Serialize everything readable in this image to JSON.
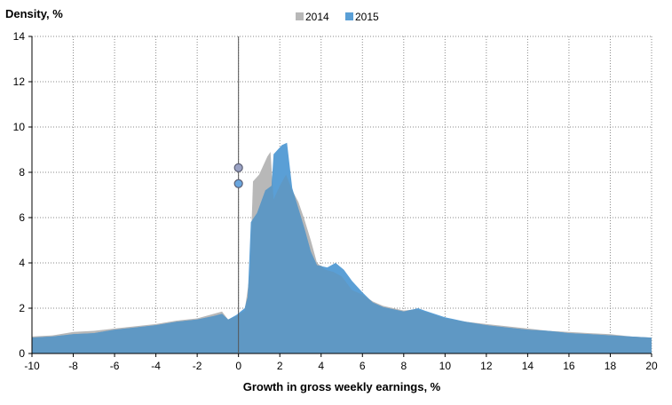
{
  "chart_data": {
    "type": "area",
    "ylabel": "Density, %",
    "xlabel": "Growth in gross weekly earnings, %",
    "xlim": [
      -10,
      20
    ],
    "ylim": [
      0,
      14
    ],
    "x_ticks": [
      -10,
      -8,
      -6,
      -4,
      -2,
      0,
      2,
      4,
      6,
      8,
      10,
      12,
      14,
      16,
      18,
      20
    ],
    "y_ticks": [
      0,
      2,
      4,
      6,
      8,
      10,
      12,
      14
    ],
    "grid": true,
    "legend_position": "top-center",
    "series": [
      {
        "name": "2014",
        "color": "#b8b8b8",
        "points": [
          [
            -10,
            0.75
          ],
          [
            -9,
            0.8
          ],
          [
            -8,
            0.95
          ],
          [
            -7,
            1.0
          ],
          [
            -6,
            1.1
          ],
          [
            -5,
            1.2
          ],
          [
            -4,
            1.3
          ],
          [
            -3,
            1.45
          ],
          [
            -2,
            1.55
          ],
          [
            -1.2,
            1.75
          ],
          [
            -0.8,
            1.85
          ],
          [
            -0.5,
            1.5
          ],
          [
            -0.1,
            1.65
          ],
          [
            0.3,
            1.9
          ],
          [
            0.55,
            3.5
          ],
          [
            0.7,
            7.6
          ],
          [
            1.0,
            7.9
          ],
          [
            1.4,
            8.7
          ],
          [
            1.55,
            8.9
          ],
          [
            1.7,
            6.8
          ],
          [
            2.0,
            7.4
          ],
          [
            2.3,
            7.9
          ],
          [
            2.6,
            7.2
          ],
          [
            2.9,
            6.7
          ],
          [
            3.2,
            5.9
          ],
          [
            3.5,
            5.0
          ],
          [
            3.8,
            4.0
          ],
          [
            4.2,
            3.7
          ],
          [
            4.6,
            3.6
          ],
          [
            5.0,
            3.4
          ],
          [
            5.5,
            2.8
          ],
          [
            6.0,
            2.6
          ],
          [
            6.5,
            2.3
          ],
          [
            7.0,
            2.1
          ],
          [
            8.0,
            1.9
          ],
          [
            8.6,
            1.95
          ],
          [
            9.0,
            1.85
          ],
          [
            10.0,
            1.55
          ],
          [
            11.0,
            1.4
          ],
          [
            12.0,
            1.3
          ],
          [
            13.0,
            1.2
          ],
          [
            14.0,
            1.1
          ],
          [
            15.0,
            1.0
          ],
          [
            16.0,
            0.95
          ],
          [
            17.0,
            0.9
          ],
          [
            18.0,
            0.85
          ],
          [
            19.0,
            0.75
          ],
          [
            20.0,
            0.7
          ]
        ],
        "marker": {
          "x": 0,
          "y": 8.2
        }
      },
      {
        "name": "2015",
        "color": "#5a9fd6",
        "points": [
          [
            -10,
            0.7
          ],
          [
            -9,
            0.75
          ],
          [
            -8,
            0.85
          ],
          [
            -7,
            0.9
          ],
          [
            -6,
            1.05
          ],
          [
            -5,
            1.15
          ],
          [
            -4,
            1.25
          ],
          [
            -3,
            1.4
          ],
          [
            -2,
            1.5
          ],
          [
            -1.2,
            1.65
          ],
          [
            -0.8,
            1.75
          ],
          [
            -0.5,
            1.5
          ],
          [
            -0.1,
            1.7
          ],
          [
            0.3,
            2.0
          ],
          [
            0.45,
            2.5
          ],
          [
            0.6,
            5.8
          ],
          [
            0.9,
            6.2
          ],
          [
            1.3,
            7.2
          ],
          [
            1.6,
            7.4
          ],
          [
            1.7,
            8.8
          ],
          [
            2.1,
            9.2
          ],
          [
            2.35,
            9.3
          ],
          [
            2.6,
            7.3
          ],
          [
            2.9,
            6.4
          ],
          [
            3.2,
            5.5
          ],
          [
            3.5,
            4.5
          ],
          [
            3.8,
            3.9
          ],
          [
            4.3,
            3.8
          ],
          [
            4.7,
            4.0
          ],
          [
            5.1,
            3.7
          ],
          [
            5.5,
            3.2
          ],
          [
            6.0,
            2.7
          ],
          [
            6.5,
            2.25
          ],
          [
            7.0,
            2.05
          ],
          [
            8.0,
            1.85
          ],
          [
            8.7,
            2.0
          ],
          [
            9.0,
            1.9
          ],
          [
            10.0,
            1.6
          ],
          [
            11.0,
            1.4
          ],
          [
            12.0,
            1.25
          ],
          [
            13.0,
            1.15
          ],
          [
            14.0,
            1.05
          ],
          [
            15.0,
            1.0
          ],
          [
            16.0,
            0.9
          ],
          [
            17.0,
            0.85
          ],
          [
            18.0,
            0.8
          ],
          [
            19.0,
            0.75
          ],
          [
            20.0,
            0.7
          ]
        ],
        "marker": {
          "x": 0,
          "y": 7.5
        }
      }
    ],
    "overlap_color": "#5f98c4"
  }
}
